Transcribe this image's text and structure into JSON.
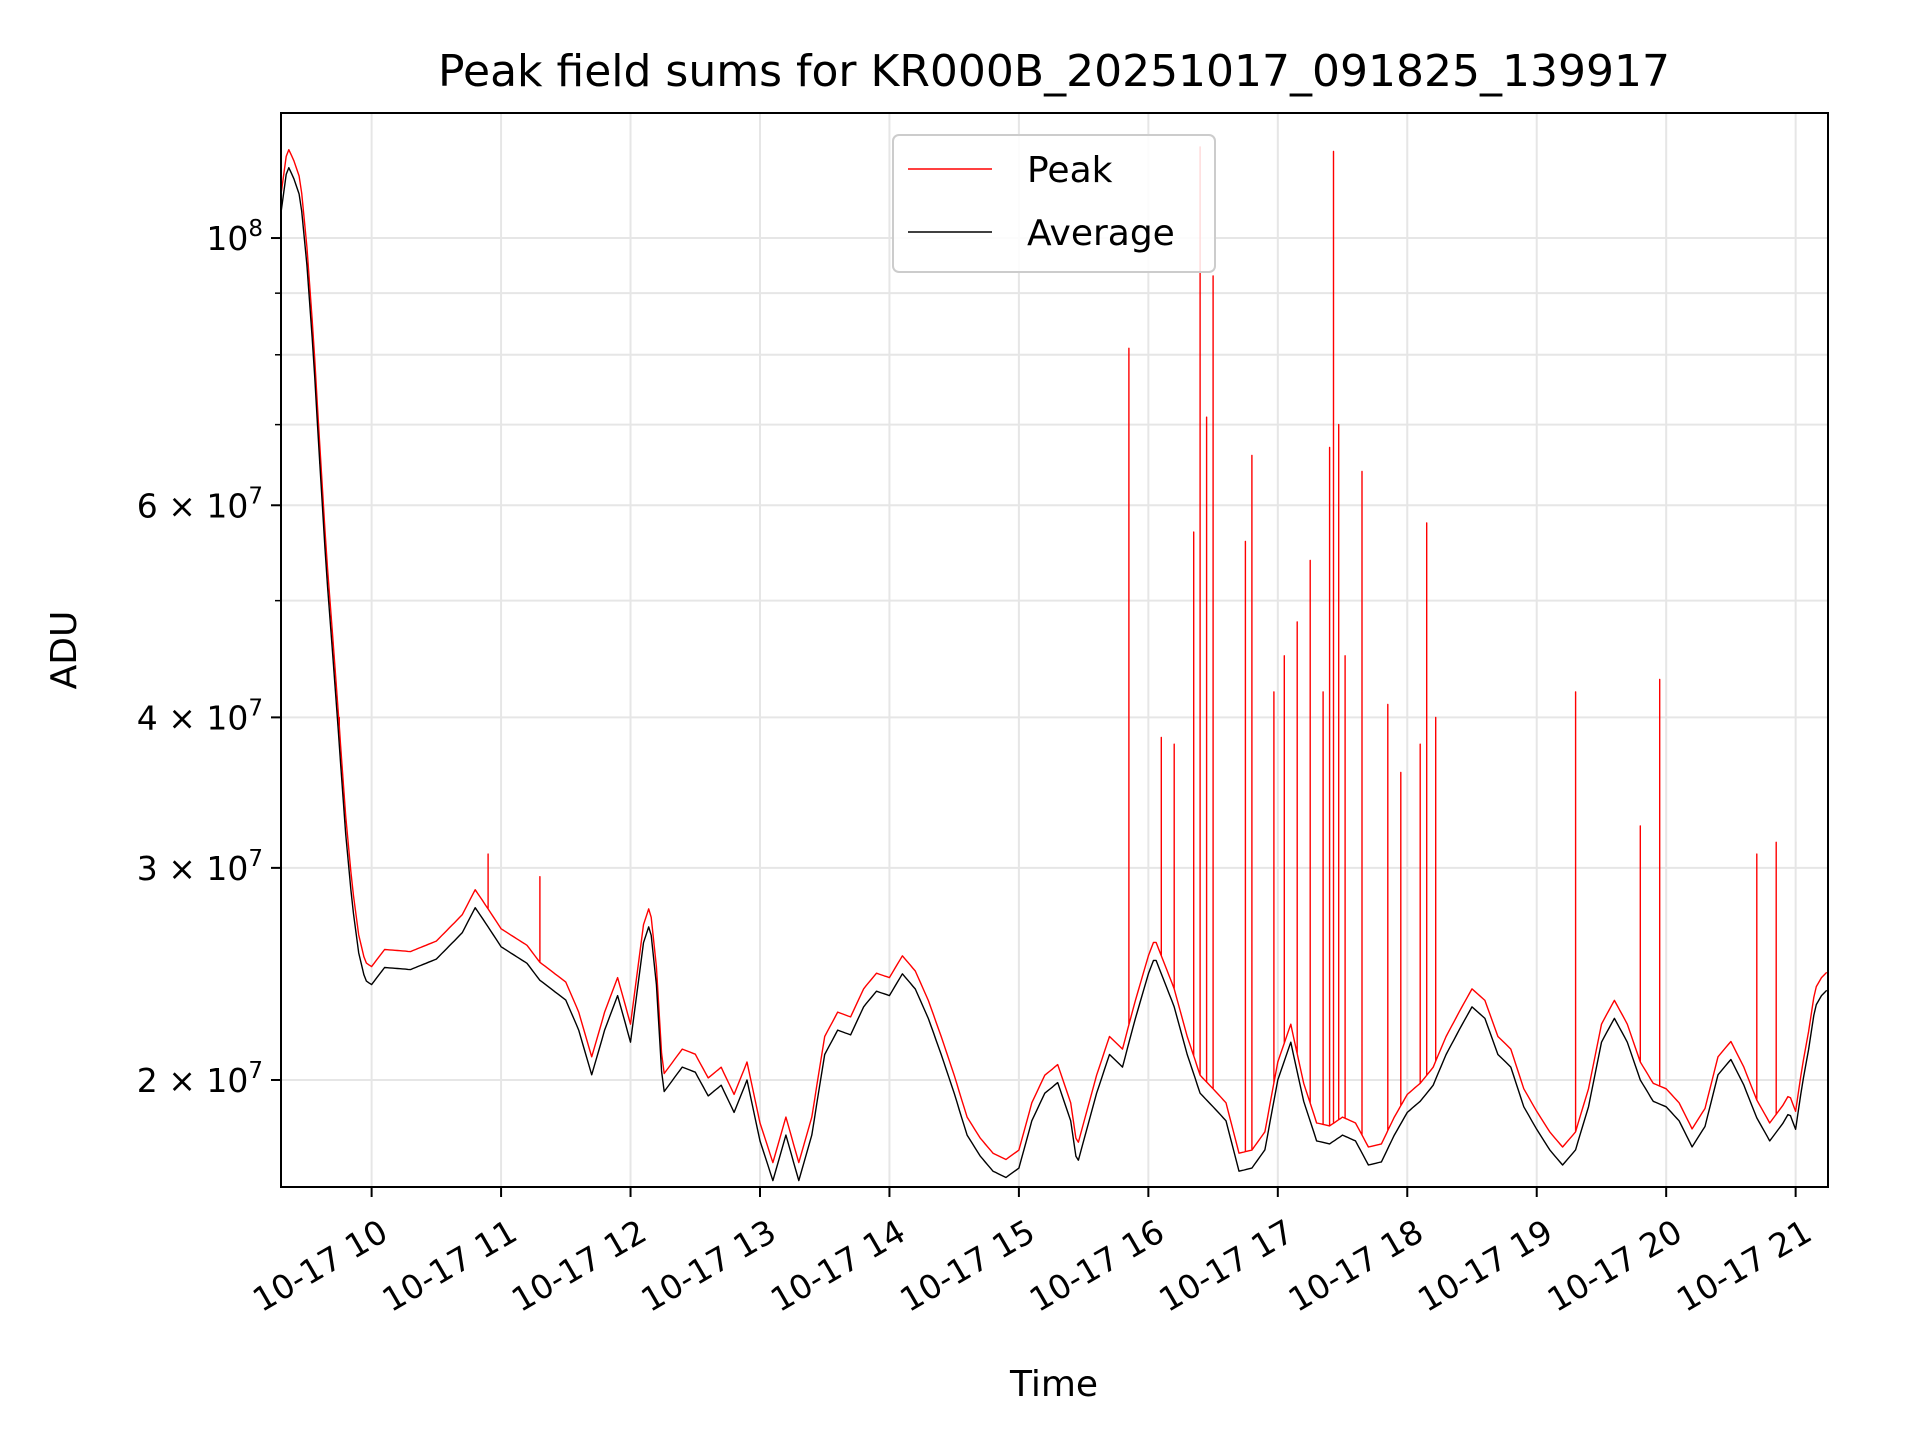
{
  "chart_data": {
    "type": "line",
    "title": "Peak field sums for KR000B_20251017_091825_139917",
    "xlabel": "Time",
    "ylabel": "ADU",
    "yscale": "log",
    "xlim": [
      9.3,
      21.25
    ],
    "ylim": [
      16300000,
      127000000
    ],
    "grid": true,
    "legend_position": "top-center",
    "x_ticks": [
      {
        "value": 10,
        "label": "10-17 10"
      },
      {
        "value": 11,
        "label": "10-17 11"
      },
      {
        "value": 12,
        "label": "10-17 12"
      },
      {
        "value": 13,
        "label": "10-17 13"
      },
      {
        "value": 14,
        "label": "10-17 14"
      },
      {
        "value": 15,
        "label": "10-17 15"
      },
      {
        "value": 16,
        "label": "10-17 16"
      },
      {
        "value": 17,
        "label": "10-17 17"
      },
      {
        "value": 18,
        "label": "10-17 18"
      },
      {
        "value": 19,
        "label": "10-17 19"
      },
      {
        "value": 20,
        "label": "10-17 20"
      },
      {
        "value": 21,
        "label": "10-17 21"
      }
    ],
    "y_major_ticks": [
      {
        "value": 20000000,
        "mantissa": "2",
        "base": "10",
        "exp": "7"
      },
      {
        "value": 30000000,
        "mantissa": "3",
        "base": "10",
        "exp": "7"
      },
      {
        "value": 40000000,
        "mantissa": "4",
        "base": "10",
        "exp": "7"
      },
      {
        "value": 60000000,
        "mantissa": "6",
        "base": "10",
        "exp": "7"
      },
      {
        "value": 100000000,
        "mantissa": "",
        "base": "10",
        "exp": "8"
      }
    ],
    "y_minor_ticks": [
      50000000,
      70000000,
      80000000,
      90000000
    ],
    "series": [
      {
        "name": "Peak",
        "color": "#ff0000",
        "x_unit": "hour of day",
        "baseline_offset_ratio": 1.035,
        "spikes": [
          {
            "x": 9.6,
            "y": 65000000
          },
          {
            "x": 9.75,
            "y": 40000000
          },
          {
            "x": 10.9,
            "y": 30800000
          },
          {
            "x": 11.3,
            "y": 29500000
          },
          {
            "x": 15.85,
            "y": 81000000
          },
          {
            "x": 16.1,
            "y": 38500000
          },
          {
            "x": 16.2,
            "y": 38000000
          },
          {
            "x": 16.35,
            "y": 57000000
          },
          {
            "x": 16.4,
            "y": 119000000
          },
          {
            "x": 16.45,
            "y": 71000000
          },
          {
            "x": 16.5,
            "y": 93000000
          },
          {
            "x": 16.75,
            "y": 56000000
          },
          {
            "x": 16.8,
            "y": 66000000
          },
          {
            "x": 16.97,
            "y": 42000000
          },
          {
            "x": 17.05,
            "y": 45000000
          },
          {
            "x": 17.15,
            "y": 48000000
          },
          {
            "x": 17.25,
            "y": 54000000
          },
          {
            "x": 17.35,
            "y": 42000000
          },
          {
            "x": 17.4,
            "y": 67000000
          },
          {
            "x": 17.43,
            "y": 118000000
          },
          {
            "x": 17.47,
            "y": 70000000
          },
          {
            "x": 17.52,
            "y": 45000000
          },
          {
            "x": 17.65,
            "y": 64000000
          },
          {
            "x": 17.85,
            "y": 41000000
          },
          {
            "x": 17.95,
            "y": 36000000
          },
          {
            "x": 18.1,
            "y": 38000000
          },
          {
            "x": 18.15,
            "y": 58000000
          },
          {
            "x": 18.22,
            "y": 40000000
          },
          {
            "x": 19.3,
            "y": 42000000
          },
          {
            "x": 19.8,
            "y": 32500000
          },
          {
            "x": 19.95,
            "y": 43000000
          },
          {
            "x": 20.7,
            "y": 30800000
          },
          {
            "x": 20.85,
            "y": 31500000
          }
        ]
      },
      {
        "name": "Average",
        "color": "#000000",
        "x_unit": "hour of day",
        "points": [
          [
            9.3,
            105000000
          ],
          [
            9.35,
            115000000
          ],
          [
            9.4,
            112000000
          ],
          [
            9.45,
            108000000
          ],
          [
            9.5,
            95000000
          ],
          [
            9.55,
            80000000
          ],
          [
            9.6,
            65000000
          ],
          [
            9.65,
            53000000
          ],
          [
            9.7,
            45000000
          ],
          [
            9.75,
            38000000
          ],
          [
            9.8,
            32000000
          ],
          [
            9.85,
            28000000
          ],
          [
            9.9,
            25500000
          ],
          [
            9.95,
            24200000
          ],
          [
            10.0,
            24000000
          ],
          [
            10.1,
            24800000
          ],
          [
            10.3,
            24700000
          ],
          [
            10.5,
            25200000
          ],
          [
            10.7,
            26500000
          ],
          [
            10.8,
            27800000
          ],
          [
            10.9,
            26800000
          ],
          [
            11.0,
            25800000
          ],
          [
            11.2,
            25000000
          ],
          [
            11.3,
            24200000
          ],
          [
            11.5,
            23300000
          ],
          [
            11.6,
            22000000
          ],
          [
            11.7,
            20200000
          ],
          [
            11.8,
            22000000
          ],
          [
            11.9,
            23500000
          ],
          [
            12.0,
            21500000
          ],
          [
            12.1,
            26000000
          ],
          [
            12.15,
            27000000
          ],
          [
            12.2,
            24000000
          ],
          [
            12.25,
            19500000
          ],
          [
            12.4,
            20500000
          ],
          [
            12.5,
            20300000
          ],
          [
            12.6,
            19400000
          ],
          [
            12.7,
            19800000
          ],
          [
            12.8,
            18800000
          ],
          [
            12.9,
            20000000
          ],
          [
            13.0,
            17800000
          ],
          [
            13.1,
            16500000
          ],
          [
            13.2,
            18000000
          ],
          [
            13.3,
            16500000
          ],
          [
            13.4,
            18000000
          ],
          [
            13.5,
            21000000
          ],
          [
            13.6,
            22000000
          ],
          [
            13.7,
            21800000
          ],
          [
            13.8,
            23000000
          ],
          [
            13.9,
            23700000
          ],
          [
            14.0,
            23500000
          ],
          [
            14.1,
            24500000
          ],
          [
            14.2,
            23800000
          ],
          [
            14.3,
            22500000
          ],
          [
            14.4,
            21000000
          ],
          [
            14.5,
            19500000
          ],
          [
            14.6,
            18000000
          ],
          [
            14.7,
            17300000
          ],
          [
            14.8,
            16800000
          ],
          [
            14.9,
            16600000
          ],
          [
            15.0,
            16900000
          ],
          [
            15.1,
            18500000
          ],
          [
            15.2,
            19500000
          ],
          [
            15.3,
            19900000
          ],
          [
            15.4,
            18500000
          ],
          [
            15.45,
            17000000
          ],
          [
            15.5,
            17800000
          ],
          [
            15.6,
            19500000
          ],
          [
            15.7,
            21000000
          ],
          [
            15.8,
            20500000
          ],
          [
            15.9,
            22500000
          ],
          [
            16.0,
            24500000
          ],
          [
            16.05,
            25300000
          ],
          [
            16.1,
            24500000
          ],
          [
            16.2,
            23000000
          ],
          [
            16.3,
            21000000
          ],
          [
            16.4,
            19500000
          ],
          [
            16.5,
            19000000
          ],
          [
            16.6,
            18500000
          ],
          [
            16.7,
            16800000
          ],
          [
            16.8,
            16900000
          ],
          [
            16.9,
            17500000
          ],
          [
            17.0,
            20000000
          ],
          [
            17.1,
            21500000
          ],
          [
            17.2,
            19200000
          ],
          [
            17.3,
            17800000
          ],
          [
            17.4,
            17700000
          ],
          [
            17.5,
            18000000
          ],
          [
            17.6,
            17800000
          ],
          [
            17.7,
            17000000
          ],
          [
            17.8,
            17100000
          ],
          [
            17.9,
            18000000
          ],
          [
            18.0,
            18800000
          ],
          [
            18.1,
            19200000
          ],
          [
            18.2,
            19800000
          ],
          [
            18.3,
            21000000
          ],
          [
            18.4,
            22000000
          ],
          [
            18.5,
            23000000
          ],
          [
            18.6,
            22500000
          ],
          [
            18.7,
            21000000
          ],
          [
            18.8,
            20500000
          ],
          [
            18.9,
            19000000
          ],
          [
            19.0,
            18200000
          ],
          [
            19.1,
            17500000
          ],
          [
            19.2,
            17000000
          ],
          [
            19.3,
            17500000
          ],
          [
            19.4,
            19000000
          ],
          [
            19.5,
            21500000
          ],
          [
            19.6,
            22500000
          ],
          [
            19.7,
            21500000
          ],
          [
            19.8,
            20000000
          ],
          [
            19.9,
            19200000
          ],
          [
            20.0,
            19000000
          ],
          [
            20.1,
            18500000
          ],
          [
            20.2,
            17600000
          ],
          [
            20.3,
            18300000
          ],
          [
            20.4,
            20200000
          ],
          [
            20.5,
            20800000
          ],
          [
            20.6,
            19800000
          ],
          [
            20.7,
            18600000
          ],
          [
            20.8,
            17800000
          ],
          [
            20.9,
            18400000
          ],
          [
            20.95,
            18800000
          ],
          [
            21.0,
            18200000
          ],
          [
            21.05,
            19800000
          ],
          [
            21.1,
            21200000
          ],
          [
            21.15,
            23000000
          ],
          [
            21.2,
            23500000
          ],
          [
            21.25,
            23800000
          ]
        ]
      }
    ]
  }
}
